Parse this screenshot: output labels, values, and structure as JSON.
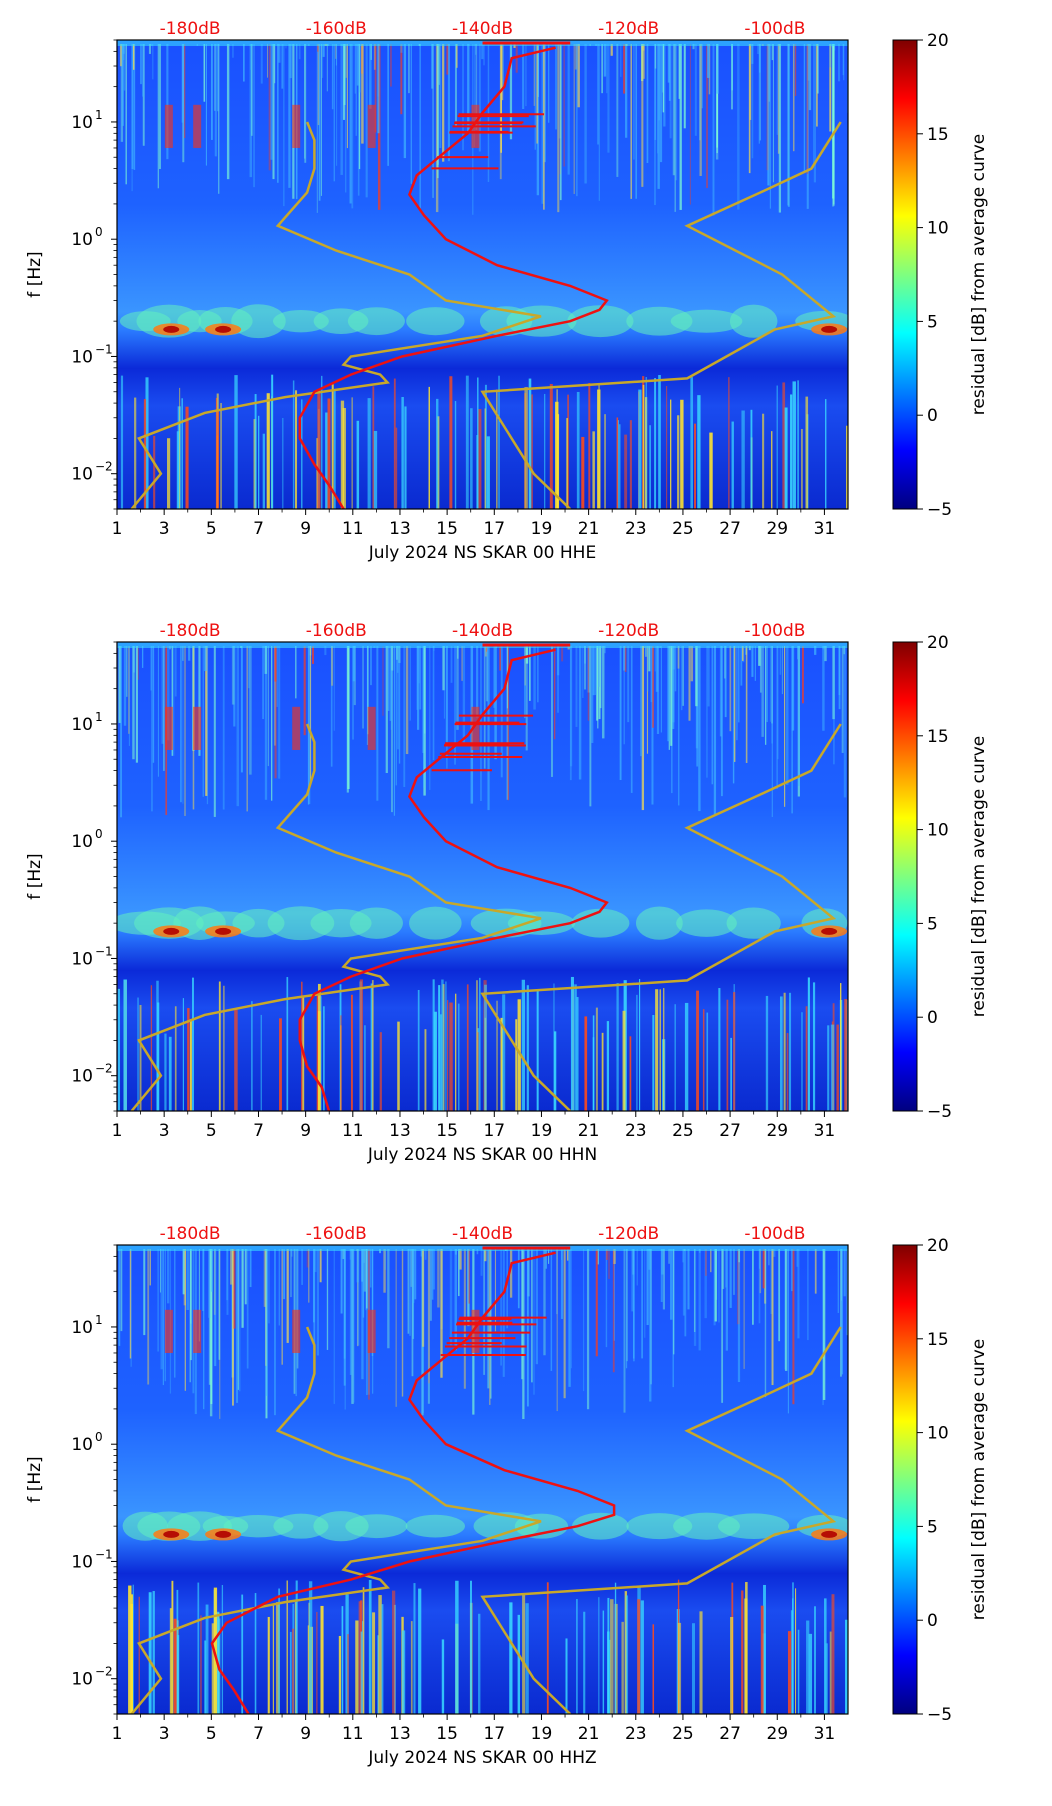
{
  "figure": {
    "colorbar_label": "residual [dB] from average curve",
    "colorbar_ticks": [
      "20",
      "15",
      "10",
      "5",
      "0",
      "−5"
    ],
    "colorbar_range": [
      -5,
      20
    ],
    "y_label": "f [Hz]",
    "x_tick_labels": [
      "1",
      "3",
      "5",
      "7",
      "9",
      "11",
      "13",
      "15",
      "17",
      "19",
      "21",
      "23",
      "25",
      "27",
      "29",
      "31"
    ],
    "y_tick_labels": [
      "10",
      "10",
      "10"
    ],
    "y_tick_exponents": [
      "1",
      "0",
      "−1",
      "−2"
    ],
    "top_axis_labels": [
      "-180dB",
      "-160dB",
      "-140dB",
      "-120dB",
      "-100dB"
    ],
    "colors": {
      "noise_model": "#c8a82a",
      "ppsd_curve": "#ee1111",
      "top_labels": "#ee1111"
    }
  },
  "chart_data": [
    {
      "type": "heatmap",
      "title": "July 2024 NS SKAR 00 HHE",
      "xlabel": "July 2024 NS SKAR 00 HHE",
      "ylabel": "f [Hz]",
      "x_range_day": [
        1,
        32
      ],
      "y_range_hz": [
        0.005,
        50
      ],
      "yscale": "log",
      "top_axis_db_range": [
        -190,
        -90
      ],
      "noise_model_db": [
        [
          0.005,
          -188
        ],
        [
          0.01,
          -184
        ],
        [
          0.02,
          -187
        ],
        [
          0.033,
          -178
        ],
        [
          0.045,
          -167
        ],
        [
          0.06,
          -153
        ],
        [
          0.07,
          -154
        ],
        [
          0.085,
          -159
        ],
        [
          0.1,
          -158
        ],
        [
          0.15,
          -140
        ],
        [
          0.22,
          -132
        ],
        [
          0.3,
          -145
        ],
        [
          0.5,
          -150
        ],
        [
          0.8,
          -160
        ],
        [
          1.3,
          -168
        ],
        [
          2.5,
          -164
        ],
        [
          4,
          -163
        ],
        [
          7,
          -163
        ],
        [
          10,
          -164
        ]
      ],
      "hi_noise_model_db": [
        [
          0.005,
          -128
        ],
        [
          0.01,
          -133
        ],
        [
          0.05,
          -140
        ],
        [
          0.065,
          -112
        ],
        [
          0.17,
          -100
        ],
        [
          0.22,
          -92
        ],
        [
          0.5,
          -99
        ],
        [
          1.3,
          -112
        ],
        [
          2.5,
          -102
        ],
        [
          4,
          -95
        ],
        [
          10,
          -91
        ]
      ],
      "ppsd_curve_db": [
        [
          0.005,
          -159
        ],
        [
          0.008,
          -161
        ],
        [
          0.012,
          -163
        ],
        [
          0.02,
          -165
        ],
        [
          0.03,
          -165
        ],
        [
          0.05,
          -163
        ],
        [
          0.07,
          -158
        ],
        [
          0.1,
          -151
        ],
        [
          0.15,
          -138
        ],
        [
          0.2,
          -128
        ],
        [
          0.25,
          -124
        ],
        [
          0.3,
          -123
        ],
        [
          0.4,
          -128
        ],
        [
          0.6,
          -138
        ],
        [
          1.0,
          -145
        ],
        [
          1.6,
          -148
        ],
        [
          2.4,
          -150
        ],
        [
          3.5,
          -149
        ],
        [
          5,
          -146
        ],
        [
          8,
          -142
        ],
        [
          12,
          -140
        ],
        [
          20,
          -137
        ],
        [
          35,
          -136
        ],
        [
          43,
          -130
        ]
      ]
    },
    {
      "type": "heatmap",
      "title": "July 2024 NS SKAR 00 HHN",
      "xlabel": "July 2024 NS SKAR 00 HHN",
      "ylabel": "f [Hz]",
      "x_range_day": [
        1,
        32
      ],
      "y_range_hz": [
        0.005,
        50
      ],
      "yscale": "log",
      "top_axis_db_range": [
        -190,
        -90
      ],
      "noise_model_db": [
        [
          0.005,
          -188
        ],
        [
          0.01,
          -184
        ],
        [
          0.02,
          -187
        ],
        [
          0.033,
          -178
        ],
        [
          0.045,
          -167
        ],
        [
          0.06,
          -153
        ],
        [
          0.07,
          -154
        ],
        [
          0.085,
          -159
        ],
        [
          0.1,
          -158
        ],
        [
          0.15,
          -140
        ],
        [
          0.22,
          -132
        ],
        [
          0.3,
          -145
        ],
        [
          0.5,
          -150
        ],
        [
          0.8,
          -160
        ],
        [
          1.3,
          -168
        ],
        [
          2.5,
          -164
        ],
        [
          4,
          -163
        ],
        [
          7,
          -163
        ],
        [
          10,
          -164
        ]
      ],
      "hi_noise_model_db": [
        [
          0.005,
          -128
        ],
        [
          0.01,
          -133
        ],
        [
          0.05,
          -140
        ],
        [
          0.065,
          -112
        ],
        [
          0.17,
          -100
        ],
        [
          0.22,
          -92
        ],
        [
          0.5,
          -99
        ],
        [
          1.3,
          -112
        ],
        [
          2.5,
          -102
        ],
        [
          4,
          -95
        ],
        [
          10,
          -91
        ]
      ],
      "ppsd_curve_db": [
        [
          0.005,
          -161
        ],
        [
          0.008,
          -162
        ],
        [
          0.012,
          -164
        ],
        [
          0.02,
          -165
        ],
        [
          0.03,
          -165
        ],
        [
          0.05,
          -163
        ],
        [
          0.07,
          -158
        ],
        [
          0.1,
          -151
        ],
        [
          0.15,
          -138
        ],
        [
          0.2,
          -128
        ],
        [
          0.25,
          -124
        ],
        [
          0.3,
          -123
        ],
        [
          0.4,
          -128
        ],
        [
          0.6,
          -138
        ],
        [
          1.0,
          -145
        ],
        [
          1.6,
          -148
        ],
        [
          2.4,
          -150
        ],
        [
          3.5,
          -149
        ],
        [
          5,
          -146
        ],
        [
          8,
          -142
        ],
        [
          12,
          -140
        ],
        [
          20,
          -137
        ],
        [
          35,
          -136
        ],
        [
          43,
          -130
        ]
      ]
    },
    {
      "type": "heatmap",
      "title": "July 2024 NS SKAR 00 HHZ",
      "xlabel": "July 2024 NS SKAR 00 HHZ",
      "ylabel": "f [Hz]",
      "x_range_day": [
        1,
        32
      ],
      "y_range_hz": [
        0.005,
        50
      ],
      "yscale": "log",
      "top_axis_db_range": [
        -190,
        -90
      ],
      "noise_model_db": [
        [
          0.005,
          -188
        ],
        [
          0.01,
          -184
        ],
        [
          0.02,
          -187
        ],
        [
          0.033,
          -178
        ],
        [
          0.045,
          -167
        ],
        [
          0.06,
          -153
        ],
        [
          0.07,
          -154
        ],
        [
          0.085,
          -159
        ],
        [
          0.1,
          -158
        ],
        [
          0.15,
          -140
        ],
        [
          0.22,
          -132
        ],
        [
          0.3,
          -145
        ],
        [
          0.5,
          -150
        ],
        [
          0.8,
          -160
        ],
        [
          1.3,
          -168
        ],
        [
          2.5,
          -164
        ],
        [
          4,
          -163
        ],
        [
          7,
          -163
        ],
        [
          10,
          -164
        ]
      ],
      "hi_noise_model_db": [
        [
          0.005,
          -128
        ],
        [
          0.01,
          -133
        ],
        [
          0.05,
          -140
        ],
        [
          0.065,
          -112
        ],
        [
          0.17,
          -100
        ],
        [
          0.22,
          -92
        ],
        [
          0.5,
          -99
        ],
        [
          1.3,
          -112
        ],
        [
          2.5,
          -102
        ],
        [
          4,
          -95
        ],
        [
          10,
          -91
        ]
      ],
      "ppsd_curve_db": [
        [
          0.005,
          -172
        ],
        [
          0.008,
          -174
        ],
        [
          0.012,
          -176
        ],
        [
          0.02,
          -177
        ],
        [
          0.03,
          -175
        ],
        [
          0.05,
          -168
        ],
        [
          0.07,
          -158
        ],
        [
          0.1,
          -150
        ],
        [
          0.15,
          -137
        ],
        [
          0.2,
          -127
        ],
        [
          0.25,
          -122
        ],
        [
          0.3,
          -122
        ],
        [
          0.4,
          -127
        ],
        [
          0.6,
          -137
        ],
        [
          1.0,
          -145
        ],
        [
          1.6,
          -148
        ],
        [
          2.4,
          -150
        ],
        [
          3.5,
          -149
        ],
        [
          5,
          -146
        ],
        [
          8,
          -142
        ],
        [
          12,
          -140
        ],
        [
          20,
          -137
        ],
        [
          35,
          -136
        ],
        [
          43,
          -130
        ]
      ]
    }
  ]
}
